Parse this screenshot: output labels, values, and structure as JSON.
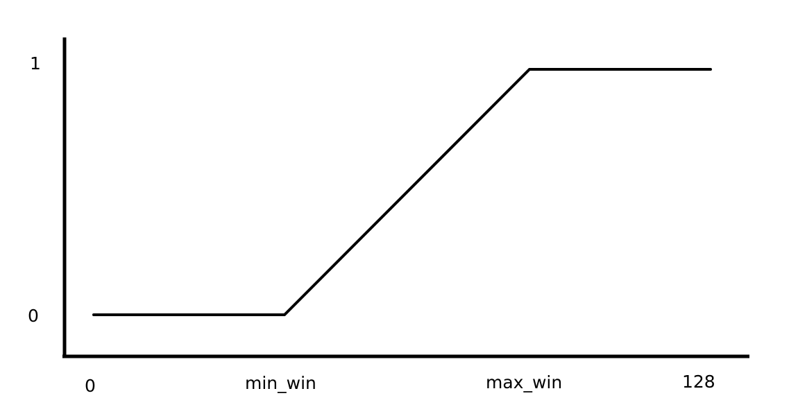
{
  "chart_data": {
    "type": "line",
    "title": "",
    "xlabel": "",
    "ylabel": "",
    "x_tick_labels": [
      "0",
      "min_win",
      "max_win",
      "128"
    ],
    "y_tick_labels": [
      "0",
      "1"
    ],
    "series": [
      {
        "name": "",
        "points": [
          {
            "x": "0",
            "y": 0
          },
          {
            "x": "min_win",
            "y": 0
          },
          {
            "x": "max_win",
            "y": 1
          },
          {
            "x": "128",
            "y": 1
          }
        ]
      }
    ],
    "grid": false,
    "line_color": "#000000",
    "axis_color": "#000000"
  }
}
